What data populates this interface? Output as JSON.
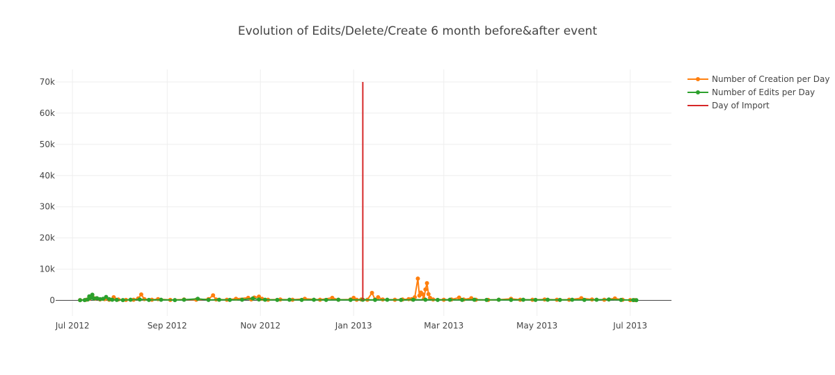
{
  "chart_data": {
    "type": "line",
    "title": "Evolution of Edits/Delete/Create 6 month before&after event",
    "xlabel": "",
    "ylabel": "",
    "x_range": [
      "2012-06-20",
      "2013-07-28"
    ],
    "ylim": [
      -5000,
      74000
    ],
    "x_ticks": [
      {
        "date": "2012-07-01",
        "label": "Jul 2012"
      },
      {
        "date": "2012-09-01",
        "label": "Sep 2012"
      },
      {
        "date": "2012-11-01",
        "label": "Nov 2012"
      },
      {
        "date": "2013-01-01",
        "label": "Jan 2013"
      },
      {
        "date": "2013-03-01",
        "label": "Mar 2013"
      },
      {
        "date": "2013-05-01",
        "label": "May 2013"
      },
      {
        "date": "2013-07-01",
        "label": "Jul 2013"
      }
    ],
    "y_ticks": [
      {
        "value": 0,
        "label": "0"
      },
      {
        "value": 10000,
        "label": "10k"
      },
      {
        "value": 20000,
        "label": "20k"
      },
      {
        "value": 30000,
        "label": "30k"
      },
      {
        "value": 40000,
        "label": "40k"
      },
      {
        "value": 50000,
        "label": "50k"
      },
      {
        "value": 60000,
        "label": "60k"
      },
      {
        "value": 70000,
        "label": "70k"
      }
    ],
    "grid": true,
    "legend_position": "top-right",
    "series": [
      {
        "name": "Number of Creation per Day",
        "color": "#ff7f0e",
        "mode": "lines+markers",
        "points": [
          [
            "2012-07-06",
            100
          ],
          [
            "2012-07-10",
            200
          ],
          [
            "2012-07-12",
            500
          ],
          [
            "2012-07-14",
            1200
          ],
          [
            "2012-07-16",
            600
          ],
          [
            "2012-07-19",
            300
          ],
          [
            "2012-07-22",
            400
          ],
          [
            "2012-07-25",
            200
          ],
          [
            "2012-07-28",
            1000
          ],
          [
            "2012-07-31",
            300
          ],
          [
            "2012-08-05",
            150
          ],
          [
            "2012-08-10",
            200
          ],
          [
            "2012-08-13",
            600
          ],
          [
            "2012-08-15",
            1900
          ],
          [
            "2012-08-17",
            400
          ],
          [
            "2012-08-22",
            200
          ],
          [
            "2012-08-26",
            400
          ],
          [
            "2012-09-03",
            150
          ],
          [
            "2012-09-12",
            300
          ],
          [
            "2012-09-20",
            200
          ],
          [
            "2012-09-28",
            400
          ],
          [
            "2012-10-01",
            1600
          ],
          [
            "2012-10-03",
            300
          ],
          [
            "2012-10-10",
            200
          ],
          [
            "2012-10-16",
            500
          ],
          [
            "2012-10-24",
            800
          ],
          [
            "2012-10-26",
            300
          ],
          [
            "2012-10-28",
            900
          ],
          [
            "2012-10-31",
            1200
          ],
          [
            "2012-11-02",
            500
          ],
          [
            "2012-11-06",
            200
          ],
          [
            "2012-11-14",
            300
          ],
          [
            "2012-11-22",
            200
          ],
          [
            "2012-11-30",
            500
          ],
          [
            "2012-12-10",
            200
          ],
          [
            "2012-12-18",
            800
          ],
          [
            "2012-12-22",
            200
          ],
          [
            "2012-12-30",
            300
          ],
          [
            "2013-01-01",
            800
          ],
          [
            "2013-01-03",
            200
          ],
          [
            "2013-01-06",
            300
          ],
          [
            "2013-01-10",
            200
          ],
          [
            "2013-01-13",
            2400
          ],
          [
            "2013-01-15",
            300
          ],
          [
            "2013-01-17",
            1000
          ],
          [
            "2013-01-20",
            300
          ],
          [
            "2013-01-28",
            200
          ],
          [
            "2013-02-02",
            300
          ],
          [
            "2013-02-06",
            400
          ],
          [
            "2013-02-08",
            400
          ],
          [
            "2013-02-10",
            1000
          ],
          [
            "2013-02-12",
            7000
          ],
          [
            "2013-02-13",
            1500
          ],
          [
            "2013-02-14",
            2500
          ],
          [
            "2013-02-15",
            2000
          ],
          [
            "2013-02-16",
            500
          ],
          [
            "2013-02-17",
            3500
          ],
          [
            "2013-02-18",
            5500
          ],
          [
            "2013-02-19",
            2000
          ],
          [
            "2013-02-20",
            800
          ],
          [
            "2013-02-22",
            300
          ],
          [
            "2013-03-01",
            200
          ],
          [
            "2013-03-06",
            300
          ],
          [
            "2013-03-11",
            900
          ],
          [
            "2013-03-14",
            300
          ],
          [
            "2013-03-19",
            700
          ],
          [
            "2013-03-22",
            200
          ],
          [
            "2013-03-30",
            150
          ],
          [
            "2013-04-06",
            200
          ],
          [
            "2013-04-14",
            500
          ],
          [
            "2013-04-20",
            200
          ],
          [
            "2013-04-28",
            200
          ],
          [
            "2013-05-06",
            300
          ],
          [
            "2013-05-14",
            200
          ],
          [
            "2013-05-22",
            200
          ],
          [
            "2013-05-30",
            700
          ],
          [
            "2013-06-06",
            300
          ],
          [
            "2013-06-14",
            200
          ],
          [
            "2013-06-21",
            600
          ],
          [
            "2013-06-26",
            200
          ],
          [
            "2013-07-01",
            100
          ],
          [
            "2013-07-04",
            100
          ]
        ]
      },
      {
        "name": "Number of Edits per Day",
        "color": "#2ca02c",
        "mode": "lines+markers",
        "points": [
          [
            "2012-07-06",
            50
          ],
          [
            "2012-07-09",
            100
          ],
          [
            "2012-07-11",
            300
          ],
          [
            "2012-07-12",
            1300
          ],
          [
            "2012-07-13",
            800
          ],
          [
            "2012-07-14",
            1800
          ],
          [
            "2012-07-15",
            600
          ],
          [
            "2012-07-17",
            700
          ],
          [
            "2012-07-19",
            400
          ],
          [
            "2012-07-21",
            500
          ],
          [
            "2012-07-23",
            1100
          ],
          [
            "2012-07-25",
            400
          ],
          [
            "2012-07-27",
            200
          ],
          [
            "2012-07-30",
            150
          ],
          [
            "2012-08-03",
            100
          ],
          [
            "2012-08-08",
            200
          ],
          [
            "2012-08-14",
            300
          ],
          [
            "2012-08-20",
            150
          ],
          [
            "2012-08-28",
            200
          ],
          [
            "2012-09-06",
            100
          ],
          [
            "2012-09-12",
            200
          ],
          [
            "2012-09-21",
            500
          ],
          [
            "2012-09-28",
            150
          ],
          [
            "2012-10-05",
            200
          ],
          [
            "2012-10-12",
            150
          ],
          [
            "2012-10-20",
            200
          ],
          [
            "2012-10-27",
            600
          ],
          [
            "2012-10-31",
            300
          ],
          [
            "2012-11-04",
            200
          ],
          [
            "2012-11-12",
            150
          ],
          [
            "2012-11-20",
            200
          ],
          [
            "2012-11-28",
            150
          ],
          [
            "2012-12-06",
            200
          ],
          [
            "2012-12-14",
            150
          ],
          [
            "2012-12-22",
            200
          ],
          [
            "2012-12-30",
            150
          ],
          [
            "2013-01-07",
            200
          ],
          [
            "2013-01-15",
            150
          ],
          [
            "2013-01-23",
            200
          ],
          [
            "2013-02-01",
            150
          ],
          [
            "2013-02-09",
            200
          ],
          [
            "2013-02-17",
            200
          ],
          [
            "2013-02-25",
            150
          ],
          [
            "2013-03-05",
            200
          ],
          [
            "2013-03-13",
            150
          ],
          [
            "2013-03-21",
            200
          ],
          [
            "2013-03-29",
            150
          ],
          [
            "2013-04-06",
            200
          ],
          [
            "2013-04-14",
            150
          ],
          [
            "2013-04-22",
            200
          ],
          [
            "2013-04-30",
            150
          ],
          [
            "2013-05-08",
            200
          ],
          [
            "2013-05-16",
            150
          ],
          [
            "2013-05-24",
            200
          ],
          [
            "2013-06-01",
            150
          ],
          [
            "2013-06-09",
            200
          ],
          [
            "2013-06-17",
            300
          ],
          [
            "2013-06-25",
            150
          ],
          [
            "2013-07-03",
            100
          ],
          [
            "2013-07-05",
            50
          ]
        ]
      },
      {
        "name": "Day of Import",
        "color": "#d62728",
        "mode": "lines",
        "points": [
          [
            "2013-01-07",
            0
          ],
          [
            "2013-01-07",
            70000
          ]
        ]
      }
    ]
  }
}
